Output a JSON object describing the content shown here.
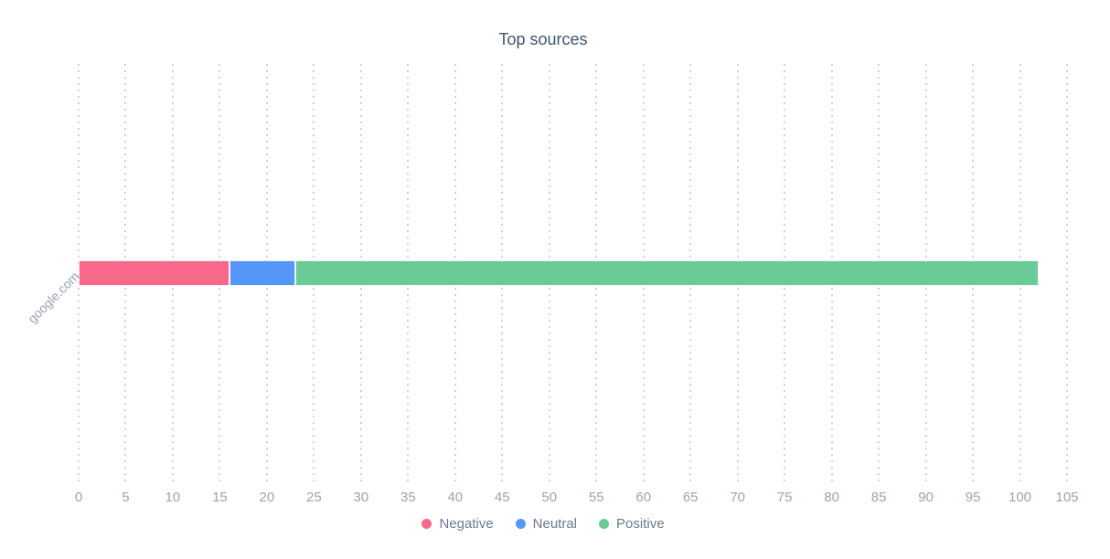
{
  "chart_data": {
    "type": "bar",
    "orientation": "horizontal",
    "stacked": true,
    "title": "Top sources",
    "categories": [
      "google.com"
    ],
    "series": [
      {
        "name": "Negative",
        "color": "#f8688a",
        "values": [
          16
        ]
      },
      {
        "name": "Neutral",
        "color": "#5596f7",
        "values": [
          7
        ]
      },
      {
        "name": "Positive",
        "color": "#68cb98",
        "values": [
          79
        ]
      }
    ],
    "xlim": [
      0,
      105
    ],
    "x_ticks": [
      0,
      5,
      10,
      15,
      20,
      25,
      30,
      35,
      40,
      45,
      50,
      55,
      60,
      65,
      70,
      75,
      80,
      85,
      90,
      95,
      100,
      105
    ],
    "grid": "vertical-dotted",
    "legend_position": "bottom",
    "colors": {
      "title": "#3d566f",
      "tick_label": "#9aa3b4",
      "legend_label": "#6b7990",
      "gridline": "#d2d2d2"
    }
  }
}
